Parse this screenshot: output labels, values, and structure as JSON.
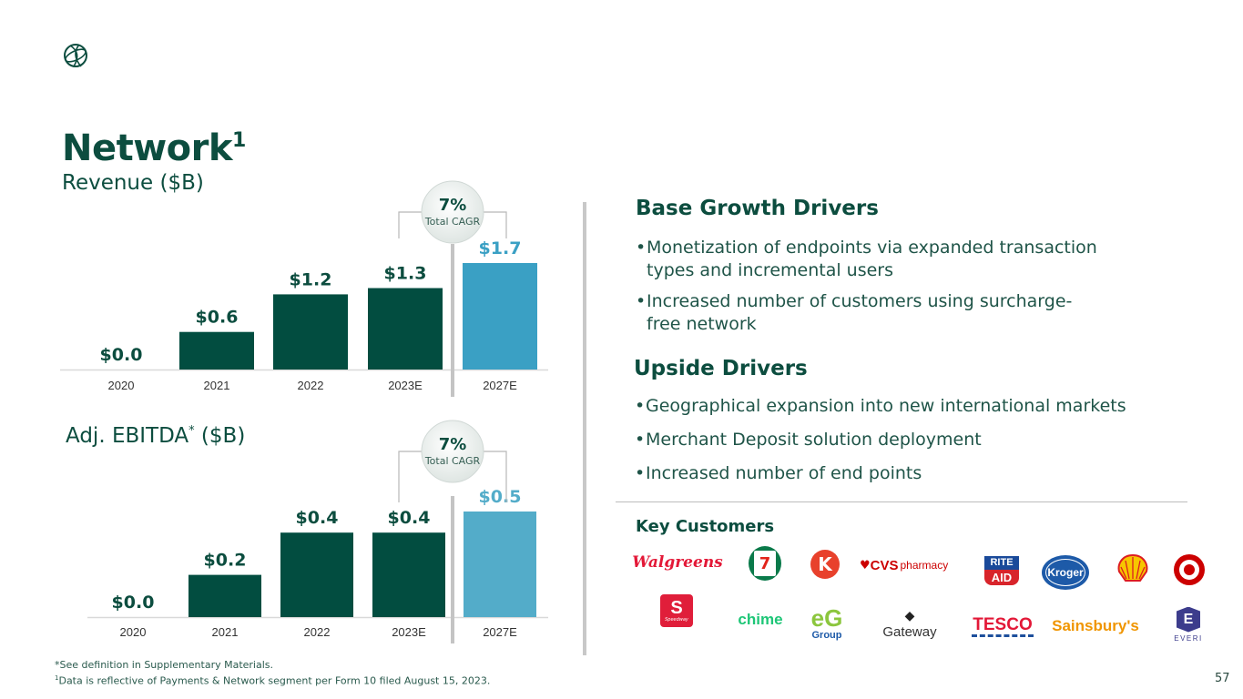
{
  "header": {
    "logo_icon": "globe-icon",
    "title": "Network",
    "title_superscript": "1"
  },
  "chart_data": [
    {
      "type": "bar",
      "title": "Revenue ($B)",
      "categories": [
        "2020",
        "2021",
        "2022",
        "2023E",
        "2027E"
      ],
      "values": [
        0.0,
        0.6,
        1.2,
        1.3,
        1.7
      ],
      "data_labels": [
        "$0.0",
        "$0.6",
        "$1.2",
        "$1.3",
        "$1.7"
      ],
      "xlabel": "",
      "ylabel": "",
      "ylim": [
        0,
        1.7
      ],
      "grid": false,
      "bar_colors": [
        "#024d40",
        "#024d40",
        "#024d40",
        "#024d40",
        "#3aa0c4"
      ],
      "label_colors": [
        "#0c4d3f",
        "#0c4d3f",
        "#0c4d3f",
        "#0c4d3f",
        "#3aa0c4"
      ],
      "annotation": {
        "value": "7%",
        "label": "Total CAGR",
        "from": "2023E",
        "to": "2027E"
      }
    },
    {
      "type": "bar",
      "title": "Adj. EBITDA",
      "title_marker": "*",
      "title_suffix": " ($B)",
      "categories": [
        "2020",
        "2021",
        "2022",
        "2023E",
        "2027E"
      ],
      "values": [
        0.0,
        0.2,
        0.4,
        0.4,
        0.5
      ],
      "data_labels": [
        "$0.0",
        "$0.2",
        "$0.4",
        "$0.4",
        "$0.5"
      ],
      "xlabel": "",
      "ylabel": "",
      "ylim": [
        0,
        0.5
      ],
      "grid": false,
      "bar_colors": [
        "#024d40",
        "#024d40",
        "#024d40",
        "#024d40",
        "#53acc9"
      ],
      "label_colors": [
        "#0c4d3f",
        "#0c4d3f",
        "#0c4d3f",
        "#0c4d3f",
        "#53acc9"
      ],
      "annotation": {
        "value": "7%",
        "label": "Total CAGR",
        "from": "2023E",
        "to": "2027E"
      }
    }
  ],
  "base_growth": {
    "heading": "Base Growth Drivers",
    "bullets": [
      [
        "Monetization of endpoints via expanded transaction",
        "types and incremental users"
      ],
      [
        "Increased number of customers using surcharge-",
        "free network"
      ]
    ]
  },
  "upside": {
    "heading": "Upside Drivers",
    "bullets": [
      "Geographical expansion into new international markets",
      "Merchant Deposit solution deployment",
      "Increased number of end points"
    ]
  },
  "customers": {
    "heading": "Key Customers",
    "logos": [
      {
        "name": "Walgreens",
        "text": "Walgreens"
      },
      {
        "name": "7-Eleven",
        "text": "7"
      },
      {
        "name": "Circle K",
        "text": "K"
      },
      {
        "name": "CVS pharmacy",
        "text": "CVS",
        "suffix": "pharmacy"
      },
      {
        "name": "Rite Aid",
        "text": "RITE",
        "text2": "AID"
      },
      {
        "name": "Kroger",
        "text": "Kroger"
      },
      {
        "name": "Shell",
        "text": ""
      },
      {
        "name": "Target",
        "text": ""
      },
      {
        "name": "Speedway",
        "text": "Speedway"
      },
      {
        "name": "Chime",
        "text": "chime"
      },
      {
        "name": "EG Group",
        "text": "eG",
        "text2": "Group"
      },
      {
        "name": "Gateway",
        "text": "Gateway"
      },
      {
        "name": "Tesco",
        "text": "TESCO"
      },
      {
        "name": "Sainsbury's",
        "text": "Sainsbury's"
      },
      {
        "name": "Everi",
        "text": "EVERI"
      }
    ]
  },
  "footnotes": [
    "*See definition in Supplementary Materials.",
    "Data is reflective of Payments & Network segment per Form 10 filed August 15, 2023."
  ],
  "footnote_marker": "1",
  "page_number": "57"
}
